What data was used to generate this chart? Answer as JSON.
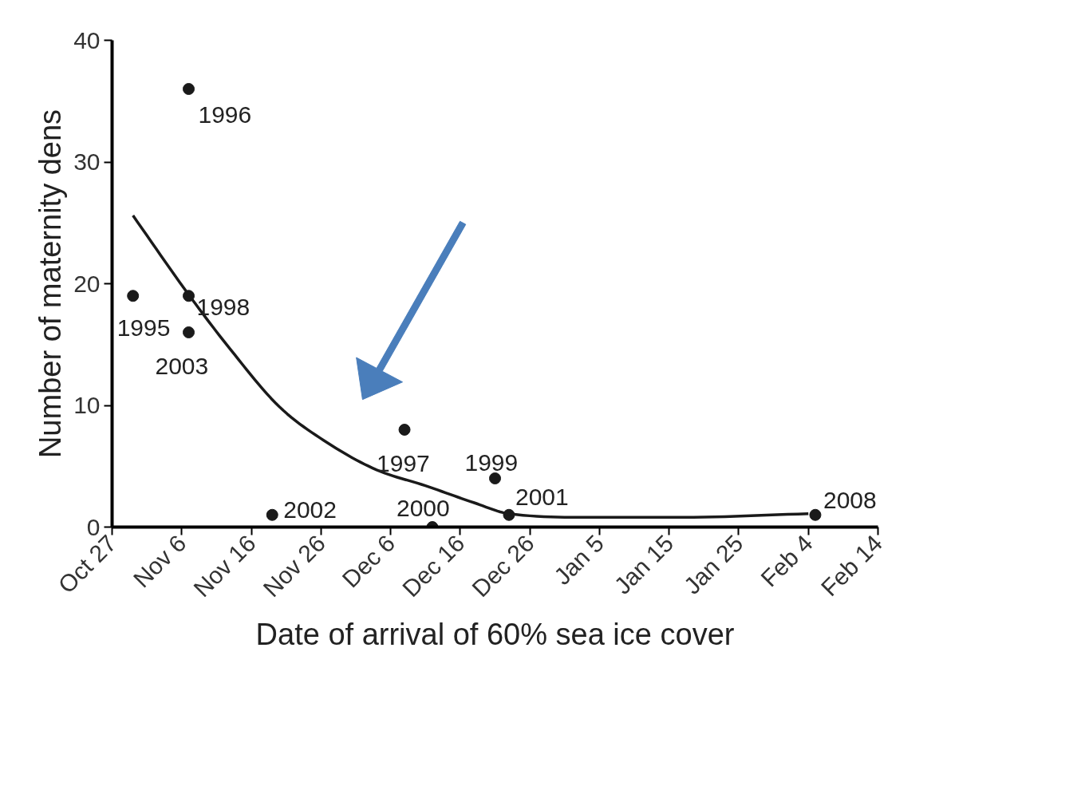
{
  "chart_data": {
    "type": "scatter",
    "xlabel": "Date of arrival of 60% sea ice cover",
    "ylabel": "Number of maternity dens",
    "x": [
      "2000-10-30",
      "2000-11-07",
      "2000-12-08",
      "2000-11-07",
      "2000-12-21",
      "2000-12-12",
      "2000-12-23",
      "2000-11-19",
      "2000-11-07",
      "2001-02-05"
    ],
    "values": [
      19,
      36,
      8,
      19,
      4,
      0,
      1,
      1,
      16,
      1
    ],
    "color": "#1a1a1a",
    "marker": "circle",
    "series": [
      {
        "type": "line",
        "color": "#1a1a1a",
        "marker": "none",
        "x": [
          "2000-10-30",
          "2000-11-07",
          "2000-11-13",
          "2000-11-20",
          "2000-11-27",
          "2000-12-04",
          "2000-12-11",
          "2000-12-18",
          "2000-12-23",
          "2001-01-04",
          "2001-01-17",
          "2001-02-04"
        ],
        "values": [
          25.6,
          19.1,
          14.6,
          9.9,
          6.9,
          4.7,
          3.4,
          2.0,
          1.1,
          0.8,
          0.8,
          1.1
        ]
      }
    ],
    "annotations": [
      {
        "text": "1995",
        "x": "2000-10-30",
        "y": 19
      },
      {
        "text": "1996",
        "x": "2000-11-07",
        "y": 36
      },
      {
        "text": "1997",
        "x": "2000-12-08",
        "y": 8
      },
      {
        "text": "1998",
        "x": "2000-11-07",
        "y": 19
      },
      {
        "text": "1999",
        "x": "2000-12-21",
        "y": 4
      },
      {
        "text": "2000",
        "x": "2000-12-12",
        "y": 0
      },
      {
        "text": "2001",
        "x": "2000-12-23",
        "y": 1
      },
      {
        "text": "2002",
        "x": "2000-11-19",
        "y": 1
      },
      {
        "text": "2003",
        "x": "2000-11-07",
        "y": 16
      },
      {
        "text": "2008",
        "x": "2001-02-05",
        "y": 1
      }
    ],
    "xlim": [
      "2000-10-27",
      "2001-02-14"
    ],
    "xticks": [
      {
        "value": "2000-10-27",
        "label": "Oct 27"
      },
      {
        "value": "2000-11-06",
        "label": "Nov 6"
      },
      {
        "value": "2000-11-16",
        "label": "Nov 16"
      },
      {
        "value": "2000-11-26",
        "label": "Nov 26"
      },
      {
        "value": "2000-12-06",
        "label": "Dec 6"
      },
      {
        "value": "2000-12-16",
        "label": "Dec 16"
      },
      {
        "value": "2000-12-26",
        "label": "Dec 26"
      },
      {
        "value": "2001-01-05",
        "label": "Jan 5"
      },
      {
        "value": "2001-01-15",
        "label": "Jan 15"
      },
      {
        "value": "2001-01-25",
        "label": "Jan 25"
      },
      {
        "value": "2001-02-04",
        "label": "Feb 4"
      },
      {
        "value": "2001-02-14",
        "label": "Feb 14"
      }
    ],
    "ylim": [
      0,
      40
    ],
    "yticks": [
      0,
      10,
      20,
      30,
      40
    ],
    "grid": false
  }
}
